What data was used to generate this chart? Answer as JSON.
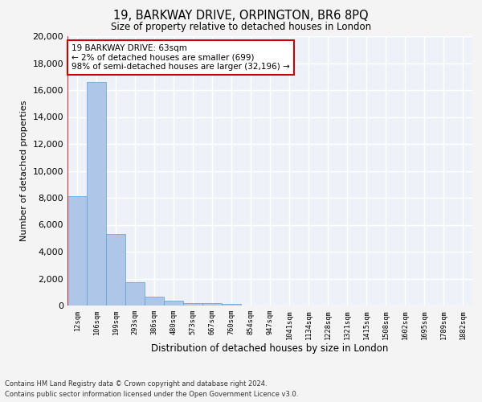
{
  "title1": "19, BARKWAY DRIVE, ORPINGTON, BR6 8PQ",
  "title2": "Size of property relative to detached houses in London",
  "xlabel": "Distribution of detached houses by size in London",
  "ylabel": "Number of detached properties",
  "categories": [
    "12sqm",
    "106sqm",
    "199sqm",
    "293sqm",
    "386sqm",
    "480sqm",
    "573sqm",
    "667sqm",
    "760sqm",
    "854sqm",
    "947sqm",
    "1041sqm",
    "1134sqm",
    "1228sqm",
    "1321sqm",
    "1415sqm",
    "1508sqm",
    "1602sqm",
    "1695sqm",
    "1789sqm",
    "1882sqm"
  ],
  "bar_heights": [
    8100,
    16600,
    5300,
    1750,
    680,
    350,
    200,
    160,
    140,
    0,
    0,
    0,
    0,
    0,
    0,
    0,
    0,
    0,
    0,
    0,
    0
  ],
  "bar_color": "#aec6e8",
  "bar_edge_color": "#5a9fd4",
  "ylim": [
    0,
    20000
  ],
  "yticks": [
    0,
    2000,
    4000,
    6000,
    8000,
    10000,
    12000,
    14000,
    16000,
    18000,
    20000
  ],
  "vline_color": "#cc0000",
  "annotation_text": "19 BARKWAY DRIVE: 63sqm\n← 2% of detached houses are smaller (699)\n98% of semi-detached houses are larger (32,196) →",
  "annotation_box_color": "#ffffff",
  "annotation_box_edge": "#cc0000",
  "footnote1": "Contains HM Land Registry data © Crown copyright and database right 2024.",
  "footnote2": "Contains public sector information licensed under the Open Government Licence v3.0.",
  "bg_color": "#eef2f8",
  "grid_color": "#ffffff",
  "fig_bg": "#f4f4f4"
}
